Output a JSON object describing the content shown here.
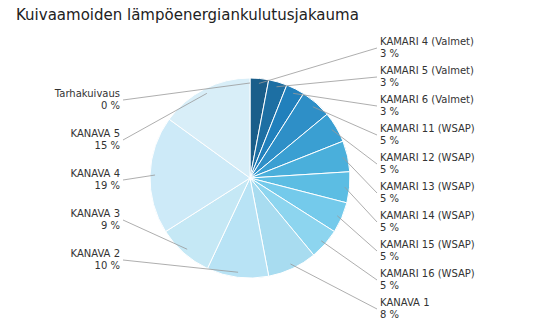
{
  "chart_data": {
    "type": "pie",
    "title": "Kuivaamoiden lämpöenergiankulutusjakauma",
    "categories": [
      "KAMARI 4 (Valmet)",
      "KAMARI 5 (Valmet)",
      "KAMARI 6 (Valmet)",
      "KAMARI 11 (WSAP)",
      "KAMARI 12 (WSAP)",
      "KAMARI 13 (WSAP)",
      "KAMARI 14 (WSAP)",
      "KAMARI 15 (WSAP)",
      "KAMARI 16 (WSAP)",
      "KANAVA 1",
      "KANAVA 2",
      "KANAVA 3",
      "KANAVA 4",
      "KANAVA 5",
      "Tarhakuivaus"
    ],
    "values": [
      3,
      3,
      3,
      5,
      5,
      5,
      5,
      5,
      5,
      8,
      10,
      9,
      19,
      15,
      0
    ],
    "value_labels": [
      "3 %",
      "3 %",
      "3 %",
      "5 %",
      "5 %",
      "5 %",
      "5 %",
      "5 %",
      "5 %",
      "8 %",
      "10 %",
      "9 %",
      "19 %",
      "15 %",
      "0 %"
    ],
    "colors": [
      "#1a5e8a",
      "#1d6fa3",
      "#2180bc",
      "#2e8fc7",
      "#3a9fd2",
      "#4aafdb",
      "#5cbde3",
      "#74caeb",
      "#8dd5ef",
      "#a8dcf0",
      "#b8e3f5",
      "#c5e8f5",
      "#cdeaf8",
      "#d8eef8",
      "#e5f4fc"
    ]
  }
}
